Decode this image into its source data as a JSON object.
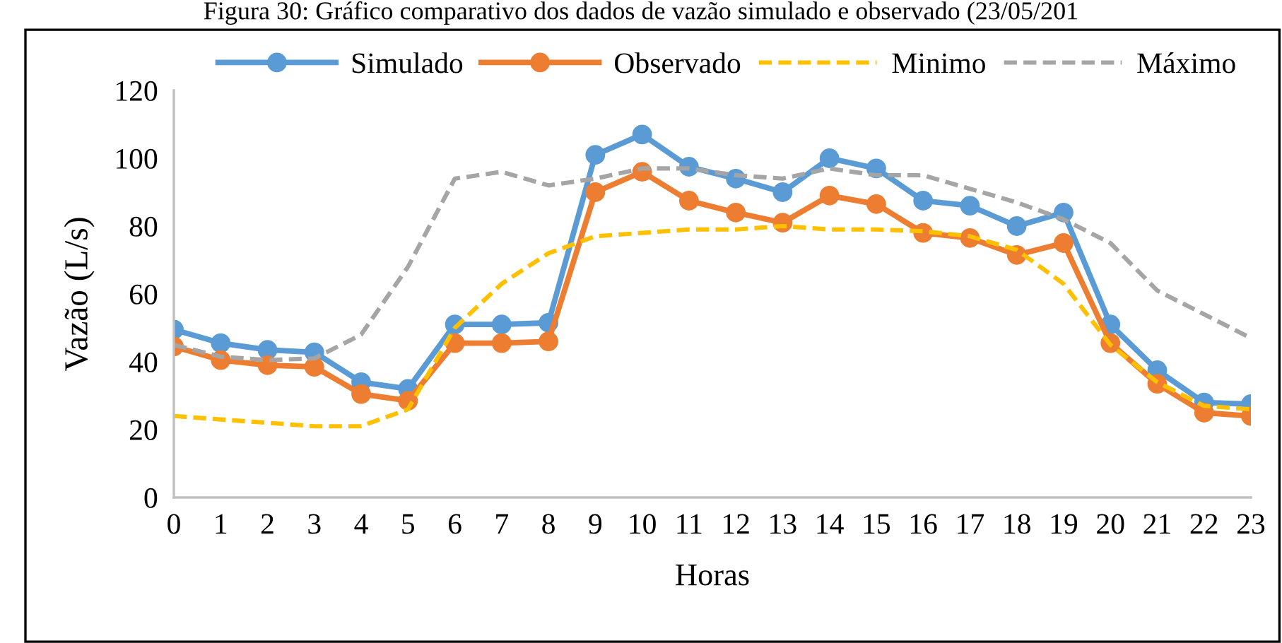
{
  "chart_data": {
    "type": "line",
    "title": "Figura 30: Gráfico comparativo dos dados de vazão simulado e observado (23/05/201",
    "xlabel": "Horas",
    "ylabel": "Vazão (L/s)",
    "categories": [
      "0",
      "1",
      "2",
      "3",
      "4",
      "5",
      "6",
      "7",
      "8",
      "9",
      "10",
      "11",
      "12",
      "13",
      "14",
      "15",
      "16",
      "17",
      "18",
      "19",
      "20",
      "21",
      "22",
      "23"
    ],
    "series": [
      {
        "name": "Simulado",
        "color": "#5b9bd5",
        "marker": "circle",
        "line_style": "solid",
        "values": [
          49.5,
          45.5,
          43.5,
          42.8,
          34,
          32,
          51,
          51,
          51.5,
          101,
          107,
          97.5,
          94,
          90,
          100,
          97,
          87.5,
          86,
          80,
          84,
          51,
          37.5,
          28,
          27.5
        ]
      },
      {
        "name": "Observado",
        "color": "#ed7d31",
        "marker": "circle",
        "line_style": "solid",
        "values": [
          44.5,
          40.5,
          39,
          38.5,
          30.5,
          28.5,
          45.5,
          45.5,
          46,
          90,
          96,
          87.5,
          84,
          81,
          89,
          86.5,
          78,
          76.5,
          71.5,
          75,
          45.5,
          33.5,
          25,
          24
        ]
      },
      {
        "name": "Minimo",
        "color": "#ffc000",
        "marker": "none",
        "line_style": "dashed",
        "values": [
          24,
          23,
          22,
          21,
          21,
          26,
          50,
          63,
          72,
          77,
          78,
          79,
          79,
          80,
          79,
          79,
          78.5,
          77,
          73,
          63,
          45,
          34,
          27,
          26
        ]
      },
      {
        "name": "Máximo",
        "color": "#a5a5a5",
        "marker": "none",
        "line_style": "dashed",
        "values": [
          45,
          41.5,
          40.5,
          41,
          48,
          68,
          94,
          96,
          92,
          94,
          97,
          97,
          95,
          94,
          97,
          95,
          95,
          91,
          87,
          82,
          75,
          61,
          54,
          47
        ]
      }
    ],
    "ylim": [
      0,
      120
    ],
    "yticks": [
      0,
      20,
      40,
      60,
      80,
      100,
      120
    ],
    "grid": false,
    "legend": "top"
  }
}
